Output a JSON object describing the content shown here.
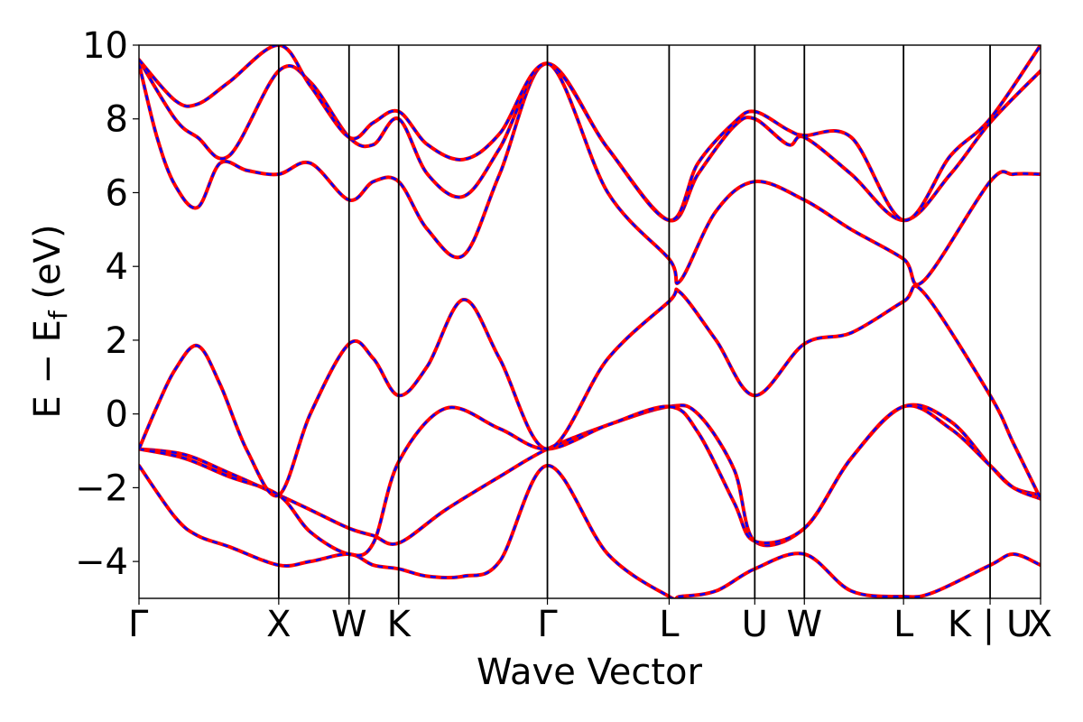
{
  "chart_data": {
    "type": "line",
    "title": "",
    "xlabel": "Wave Vector",
    "ylabel": "E  −  E",
    "ylabel_subscript": "f",
    "ylabel_unit": " (eV)",
    "ylim": [
      -5,
      10
    ],
    "yticks": [
      -4,
      -2,
      0,
      2,
      4,
      6,
      8,
      10
    ],
    "xlim": [
      0,
      1
    ],
    "grid": false,
    "legend": "none",
    "k_points": [
      {
        "label": "Γ",
        "x": 0.0
      },
      {
        "label": "X",
        "x": 0.155
      },
      {
        "label": "W",
        "x": 0.233
      },
      {
        "label": "K",
        "x": 0.288
      },
      {
        "label": "Γ",
        "x": 0.453
      },
      {
        "label": "L",
        "x": 0.588
      },
      {
        "label": "U",
        "x": 0.683
      },
      {
        "label": "W",
        "x": 0.738
      },
      {
        "label": "L",
        "x": 0.848
      },
      {
        "label": "K | U",
        "x": 0.944
      },
      {
        "label": "X",
        "x": 1.0
      }
    ],
    "series_style": [
      {
        "color": "#ff0000",
        "dashed": false
      },
      {
        "color": "#0000ff",
        "dashed": true
      }
    ],
    "bands": [
      {
        "x": [
          0.0,
          0.04,
          0.065,
          0.1,
          0.155,
          0.19,
          0.233,
          0.26,
          0.288,
          0.32,
          0.36,
          0.4,
          0.453,
          0.52,
          0.588,
          0.6,
          0.64,
          0.683,
          0.738,
          0.79,
          0.848,
          0.88,
          0.944,
          0.97,
          1.0
        ],
        "y": [
          -1.4,
          -2.8,
          -3.3,
          -3.6,
          -4.1,
          -4.0,
          -3.8,
          -4.1,
          -4.2,
          -4.4,
          -4.4,
          -4.0,
          -1.4,
          -3.8,
          -4.95,
          -4.95,
          -4.8,
          -4.2,
          -3.8,
          -4.8,
          -4.95,
          -4.85,
          -4.1,
          -3.8,
          -4.1
        ]
      },
      {
        "x": [
          0.0,
          0.05,
          0.1,
          0.155,
          0.19,
          0.233,
          0.26,
          0.288,
          0.34,
          0.4,
          0.453,
          0.52,
          0.588,
          0.62,
          0.66,
          0.683,
          0.738,
          0.79,
          0.848,
          0.9,
          0.944,
          0.97,
          1.0
        ],
        "y": [
          -0.95,
          -1.1,
          -1.6,
          -2.2,
          -2.6,
          -3.1,
          -3.3,
          -3.5,
          -2.6,
          -1.7,
          -0.95,
          -0.3,
          0.2,
          0.0,
          -1.5,
          -3.45,
          -3.1,
          -1.2,
          0.2,
          -0.2,
          -1.4,
          -2.0,
          -2.2
        ]
      },
      {
        "x": [
          0.0,
          0.05,
          0.1,
          0.155,
          0.19,
          0.233,
          0.26,
          0.288,
          0.34,
          0.4,
          0.453,
          0.52,
          0.588,
          0.62,
          0.66,
          0.683,
          0.738,
          0.79,
          0.848,
          0.9,
          0.944,
          0.97,
          1.0
        ],
        "y": [
          -0.95,
          -1.2,
          -1.7,
          -2.2,
          -3.2,
          -3.8,
          -3.5,
          -1.3,
          0.15,
          -0.4,
          -0.95,
          -0.3,
          0.2,
          -0.5,
          -2.4,
          -3.45,
          -3.1,
          -1.2,
          0.2,
          -0.4,
          -1.4,
          -2.0,
          -2.3
        ]
      },
      {
        "x": [
          0.0,
          0.02,
          0.04,
          0.065,
          0.09,
          0.12,
          0.155,
          0.19,
          0.233,
          0.26,
          0.288,
          0.32,
          0.36,
          0.4,
          0.453,
          0.52,
          0.588,
          0.6,
          0.64,
          0.683,
          0.738,
          0.79,
          0.848,
          0.87,
          0.944,
          0.97,
          1.0
        ],
        "y": [
          -0.95,
          0.2,
          1.2,
          1.85,
          0.8,
          -1.0,
          -2.2,
          0.0,
          1.9,
          1.5,
          0.5,
          1.3,
          3.1,
          1.5,
          -0.95,
          1.5,
          3.05,
          3.3,
          2.0,
          0.5,
          1.9,
          2.2,
          3.05,
          3.3,
          0.5,
          -0.8,
          -2.3
        ]
      },
      {
        "x": [
          0.0,
          0.02,
          0.04,
          0.065,
          0.09,
          0.12,
          0.155,
          0.19,
          0.233,
          0.26,
          0.288,
          0.32,
          0.36,
          0.4,
          0.453,
          0.52,
          0.588,
          0.6,
          0.64,
          0.683,
          0.738,
          0.79,
          0.848,
          0.87,
          0.944,
          0.97,
          1.0
        ],
        "y": [
          9.5,
          7.5,
          6.2,
          5.6,
          6.8,
          6.6,
          6.5,
          6.8,
          5.8,
          6.3,
          6.3,
          5.0,
          4.3,
          6.5,
          9.5,
          6.0,
          4.2,
          3.6,
          5.5,
          6.3,
          5.8,
          5.0,
          4.2,
          3.6,
          6.3,
          6.5,
          6.5
        ]
      },
      {
        "x": [
          0.0,
          0.04,
          0.065,
          0.1,
          0.155,
          0.19,
          0.233,
          0.26,
          0.288,
          0.32,
          0.36,
          0.4,
          0.453,
          0.52,
          0.588,
          0.62,
          0.66,
          0.683,
          0.72,
          0.738,
          0.79,
          0.848,
          0.9,
          0.944,
          1.0
        ],
        "y": [
          9.6,
          8.0,
          7.5,
          7.0,
          9.3,
          9.0,
          7.5,
          7.3,
          8.0,
          6.5,
          5.9,
          7.2,
          9.5,
          7.2,
          5.25,
          6.5,
          7.8,
          8.0,
          7.3,
          7.5,
          6.5,
          5.25,
          6.5,
          7.9,
          9.3
        ]
      },
      {
        "x": [
          0.0,
          0.04,
          0.065,
          0.1,
          0.155,
          0.19,
          0.233,
          0.26,
          0.288,
          0.32,
          0.36,
          0.4,
          0.453,
          0.52,
          0.588,
          0.62,
          0.66,
          0.683,
          0.72,
          0.738,
          0.79,
          0.848,
          0.9,
          0.944,
          1.0
        ],
        "y": [
          9.6,
          8.5,
          8.4,
          9.0,
          10.0,
          8.9,
          7.5,
          7.9,
          8.2,
          7.3,
          6.9,
          7.6,
          9.5,
          7.2,
          5.25,
          6.8,
          7.9,
          8.2,
          7.7,
          7.55,
          7.5,
          5.25,
          7.0,
          8.0,
          10.0
        ]
      }
    ]
  }
}
